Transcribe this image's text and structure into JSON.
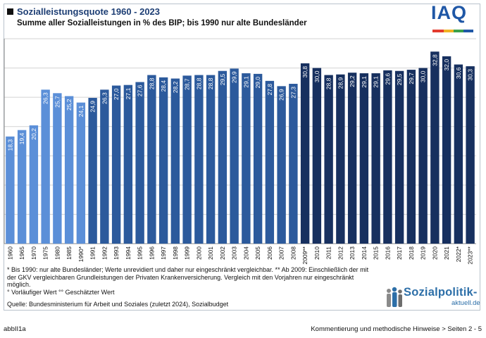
{
  "header": {
    "title": "Sozialleistungsquote 1960 - 2023",
    "subtitle": "Summe aller Sozialleistungen in % des BIP; bis 1990 nur alte Bundesländer",
    "logo_text": "IAQ"
  },
  "colors": {
    "light": "#5b8fd8",
    "mid": "#2c5a9c",
    "dark": "#17305f",
    "grid": "#d3d3d3",
    "logo_blue": "#1f57a6"
  },
  "chart_data": {
    "type": "bar",
    "title": "Sozialleistungsquote 1960 - 2023",
    "xlabel": "",
    "ylabel": "",
    "ylim": [
      0,
      35
    ],
    "grid": true,
    "categories": [
      "1960",
      "1965",
      "1970",
      "1975",
      "1980",
      "1985",
      "1990*",
      "1991",
      "1992",
      "1993",
      "1994",
      "1995",
      "1996",
      "1997",
      "1998",
      "1999",
      "2000",
      "2001",
      "2002",
      "2003",
      "2004",
      "2005",
      "2006",
      "2007",
      "2008",
      "2009**",
      "2010",
      "2011",
      "2012",
      "2013",
      "2014",
      "2015",
      "2016",
      "2017",
      "2018",
      "2019",
      "2020",
      "2021",
      "2022*",
      "2023**"
    ],
    "values": [
      18.3,
      19.4,
      20.2,
      26.3,
      25.7,
      25.2,
      24.1,
      24.9,
      26.3,
      27.0,
      27.1,
      27.6,
      28.8,
      28.4,
      28.2,
      28.7,
      28.8,
      28.8,
      29.5,
      29.9,
      29.1,
      29.0,
      27.8,
      26.9,
      27.3,
      30.8,
      30.0,
      28.8,
      28.9,
      29.2,
      29.1,
      29.1,
      29.6,
      29.5,
      29.7,
      30.0,
      32.8,
      32.0,
      30.6,
      30.3
    ],
    "value_labels": [
      "18,3",
      "19,4",
      "20,2",
      "26,3",
      "25,7",
      "25,2",
      "24,1",
      "24,9",
      "26,3",
      "27,0",
      "27,1",
      "27,6",
      "28,8",
      "28,4",
      "28,2",
      "28,7",
      "28,8",
      "28,8",
      "29,5",
      "29,9",
      "29,1",
      "29,0",
      "27,8",
      "26,9",
      "27,3",
      "30,8",
      "30,0",
      "28,8",
      "28,9",
      "29,2",
      "29,1",
      "29,1",
      "29,6",
      "29,5",
      "29,7",
      "30,0",
      "32,8",
      "32,0",
      "30,6",
      "30,3"
    ],
    "groups": [
      "light",
      "light",
      "light",
      "light",
      "light",
      "light",
      "light",
      "mid",
      "mid",
      "mid",
      "mid",
      "mid",
      "mid",
      "mid",
      "mid",
      "mid",
      "mid",
      "mid",
      "mid",
      "mid",
      "mid",
      "mid",
      "mid",
      "mid",
      "mid",
      "dark",
      "dark",
      "dark",
      "dark",
      "dark",
      "dark",
      "dark",
      "dark",
      "dark",
      "dark",
      "dark",
      "dark",
      "dark",
      "dark",
      "dark"
    ]
  },
  "notes": {
    "footnote": "* Bis 1990: nur alte Bundesländer; Werte unrevidiert und daher nur eingeschränkt vergleichbar. ** Ab 2009: Einschließlich der mit der GKV vergleichbaren Grundleistungen der Privaten Krankenversicherung. Vergleich mit den  Vorjahren nur eingeschränkt möglich.",
    "footnote_marks": "° Vorläufiger Wert   °° Geschätzter Wert",
    "source": "Quelle: Bundesministerium für Arbeit und Soziales (zuletzt 2024), Sozialbudget"
  },
  "branding": {
    "main": "Sozialpolitik-",
    "sub": "aktuell.de"
  },
  "footer": {
    "left": "abbII1a",
    "right": "Kommentierung und methodische Hinweise > Seiten 2 - 5"
  }
}
